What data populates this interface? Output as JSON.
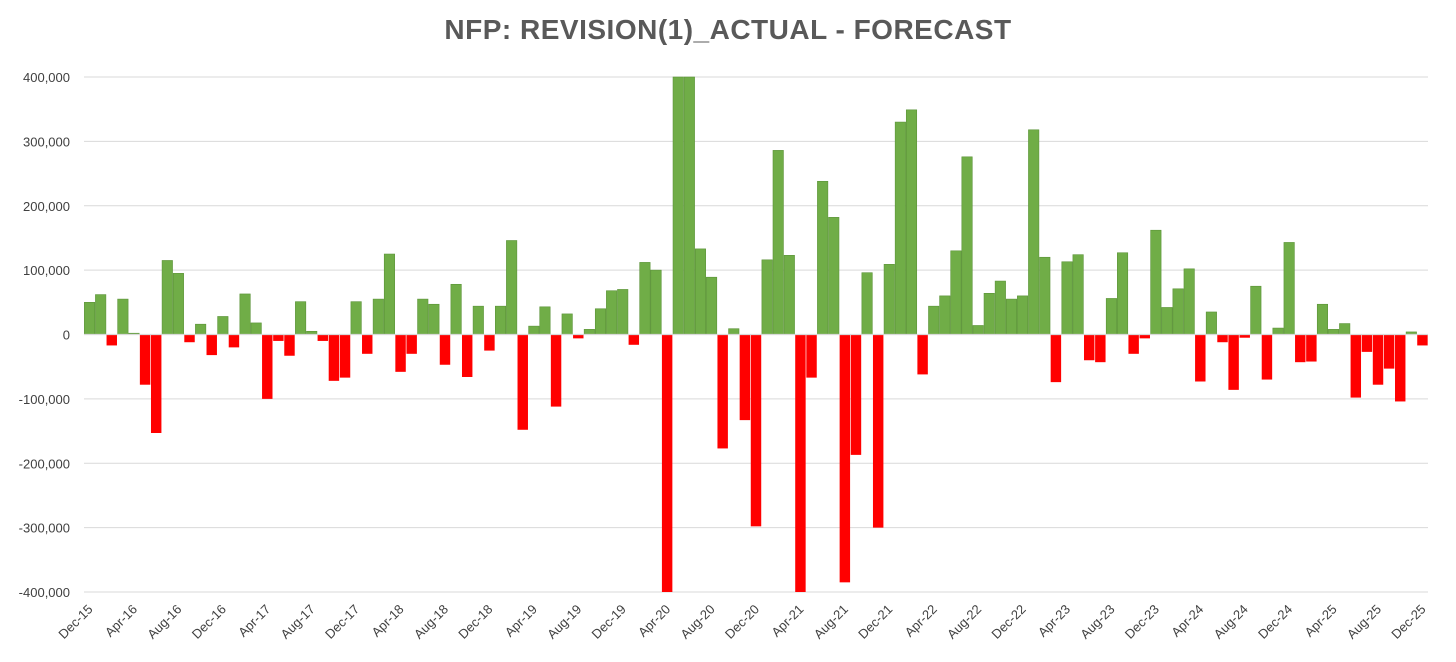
{
  "chart_data": {
    "type": "bar",
    "title": "NFP: REVISION(1)_ACTUAL - FORECAST",
    "xlabel": "",
    "ylabel": "",
    "ylim": [
      -400000,
      400000
    ],
    "yticks": [
      -400000,
      -300000,
      -200000,
      -100000,
      0,
      100000,
      200000,
      300000,
      400000
    ],
    "ytick_labels": [
      "-400,000",
      "-300,000",
      "-200,000",
      "-100,000",
      "0",
      "100,000",
      "200,000",
      "300,000",
      "400,000"
    ],
    "grid": true,
    "positive_color": "#70AD47",
    "negative_color": "#FF0000",
    "xtick_every": 4,
    "categories": [
      "Dec-15",
      "Jan-16",
      "Feb-16",
      "Mar-16",
      "Apr-16",
      "May-16",
      "Jun-16",
      "Jul-16",
      "Aug-16",
      "Sep-16",
      "Oct-16",
      "Nov-16",
      "Dec-16",
      "Jan-17",
      "Feb-17",
      "Mar-17",
      "Apr-17",
      "May-17",
      "Jun-17",
      "Jul-17",
      "Aug-17",
      "Sep-17",
      "Oct-17",
      "Nov-17",
      "Dec-17",
      "Jan-18",
      "Feb-18",
      "Mar-18",
      "Apr-18",
      "May-18",
      "Jun-18",
      "Jul-18",
      "Aug-18",
      "Sep-18",
      "Oct-18",
      "Nov-18",
      "Dec-18",
      "Jan-19",
      "Feb-19",
      "Mar-19",
      "Apr-19",
      "May-19",
      "Jun-19",
      "Jul-19",
      "Aug-19",
      "Sep-19",
      "Oct-19",
      "Nov-19",
      "Dec-19",
      "Jan-20",
      "Feb-20",
      "Mar-20",
      "Apr-20",
      "May-20",
      "Jun-20",
      "Jul-20",
      "Aug-20",
      "Sep-20",
      "Oct-20",
      "Nov-20",
      "Dec-20",
      "Jan-21",
      "Feb-21",
      "Mar-21",
      "Apr-21",
      "May-21",
      "Jun-21",
      "Jul-21",
      "Aug-21",
      "Sep-21",
      "Oct-21",
      "Nov-21",
      "Dec-21",
      "Jan-22",
      "Feb-22",
      "Mar-22",
      "Apr-22",
      "May-22",
      "Jun-22",
      "Jul-22",
      "Aug-22",
      "Sep-22",
      "Oct-22",
      "Nov-22",
      "Dec-22",
      "Jan-23",
      "Feb-23",
      "Mar-23",
      "Apr-23",
      "May-23",
      "Jun-23",
      "Jul-23",
      "Aug-23",
      "Sep-23",
      "Oct-23",
      "Nov-23",
      "Dec-23",
      "Jan-24",
      "Feb-24",
      "Mar-24",
      "Apr-24",
      "May-24",
      "Jun-24",
      "Jul-24",
      "Aug-24",
      "Sep-24",
      "Oct-24",
      "Nov-24",
      "Dec-24",
      "Jan-25",
      "Feb-25",
      "Mar-25",
      "Apr-25",
      "May-25",
      "Jun-25",
      "Jul-25",
      "Aug-25",
      "Sep-25",
      "Oct-25",
      "Nov-25",
      "Dec-25"
    ],
    "values": [
      50000,
      62000,
      -17000,
      55000,
      2000,
      -78000,
      -153000,
      115000,
      95000,
      -12000,
      16000,
      -32000,
      28000,
      -20000,
      63000,
      18000,
      -100000,
      -10000,
      -33000,
      51000,
      5000,
      -10000,
      -72000,
      -67000,
      51000,
      -30000,
      55000,
      125000,
      -58000,
      -30000,
      55000,
      47000,
      -47000,
      78000,
      -66000,
      44000,
      -25000,
      44000,
      146000,
      -148000,
      13000,
      43000,
      -112000,
      32000,
      -6000,
      8000,
      40000,
      68000,
      70000,
      -16000,
      112000,
      100000,
      -400000,
      400000,
      400000,
      133000,
      89000,
      -177000,
      9000,
      -133000,
      -298000,
      116000,
      286000,
      123000,
      -400000,
      -67000,
      238000,
      182000,
      -385000,
      -187000,
      96000,
      -300000,
      109000,
      330000,
      349000,
      -62000,
      44000,
      60000,
      130000,
      276000,
      14000,
      64000,
      83000,
      55000,
      60000,
      318000,
      120000,
      -74000,
      113000,
      124000,
      -40000,
      -43000,
      56000,
      127000,
      -30000,
      -6000,
      162000,
      42000,
      71000,
      102000,
      -73000,
      35000,
      -12000,
      -86000,
      -5000,
      75000,
      -70000,
      10000,
      143000,
      -43000,
      -42000,
      47000,
      8000,
      17000,
      -98000,
      -27000,
      -78000,
      -53000,
      -104000,
      4000,
      -17000
    ]
  }
}
